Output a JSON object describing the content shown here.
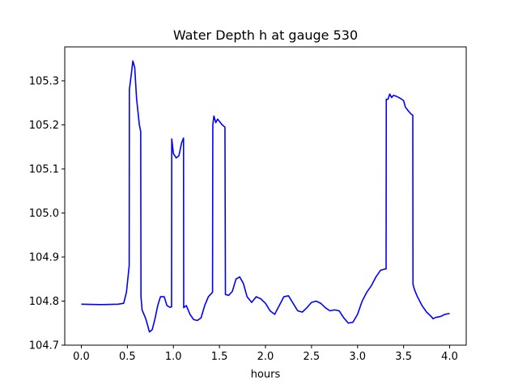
{
  "chart_data": {
    "type": "line",
    "title": "Water Depth h at gauge 530",
    "xlabel": "hours",
    "ylabel": "",
    "xlim": [
      -0.18,
      4.18
    ],
    "ylim": [
      104.7,
      105.377
    ],
    "xticks": [
      0.0,
      0.5,
      1.0,
      1.5,
      2.0,
      2.5,
      3.0,
      3.5,
      4.0
    ],
    "xtick_labels": [
      "0.0",
      "0.5",
      "1.0",
      "1.5",
      "2.0",
      "2.5",
      "3.0",
      "3.5",
      "4.0"
    ],
    "yticks": [
      104.7,
      104.8,
      104.9,
      105.0,
      105.1,
      105.2,
      105.3
    ],
    "ytick_labels": [
      "104.7",
      "104.8",
      "104.9",
      "105.0",
      "105.1",
      "105.2",
      "105.3"
    ],
    "grid": false,
    "legend": "none",
    "series": [
      {
        "color": "#0000ff",
        "x": [
          0.0,
          0.2,
          0.4,
          0.46,
          0.49,
          0.52,
          0.522,
          0.54,
          0.56,
          0.58,
          0.6,
          0.63,
          0.645,
          0.648,
          0.66,
          0.7,
          0.74,
          0.77,
          0.8,
          0.83,
          0.86,
          0.9,
          0.93,
          0.96,
          0.98,
          0.982,
          1.0,
          1.03,
          1.06,
          1.09,
          1.11,
          1.112,
          1.14,
          1.18,
          1.22,
          1.26,
          1.3,
          1.34,
          1.38,
          1.425,
          1.428,
          1.44,
          1.46,
          1.48,
          1.5,
          1.53,
          1.56,
          1.565,
          1.6,
          1.64,
          1.68,
          1.72,
          1.76,
          1.8,
          1.85,
          1.9,
          1.95,
          2.0,
          2.05,
          2.1,
          2.15,
          2.2,
          2.25,
          2.3,
          2.35,
          2.4,
          2.45,
          2.5,
          2.55,
          2.6,
          2.65,
          2.7,
          2.75,
          2.8,
          2.85,
          2.9,
          2.95,
          3.0,
          3.05,
          3.1,
          3.15,
          3.2,
          3.25,
          3.3,
          3.31,
          3.312,
          3.33,
          3.35,
          3.37,
          3.39,
          3.42,
          3.45,
          3.48,
          3.5,
          3.52,
          3.55,
          3.58,
          3.6,
          3.602,
          3.62,
          3.65,
          3.7,
          3.75,
          3.8,
          3.82,
          3.85,
          3.9,
          3.95,
          4.0
        ],
        "y": [
          104.793,
          104.792,
          104.793,
          104.795,
          104.82,
          104.88,
          105.28,
          105.31,
          105.345,
          105.33,
          105.26,
          105.2,
          105.185,
          104.81,
          104.78,
          104.76,
          104.73,
          104.735,
          104.76,
          104.79,
          104.81,
          104.81,
          104.79,
          104.786,
          104.787,
          105.168,
          105.135,
          105.125,
          105.13,
          105.16,
          105.17,
          104.785,
          104.79,
          104.77,
          104.758,
          104.756,
          104.762,
          104.79,
          104.81,
          104.82,
          105.2,
          105.22,
          105.205,
          105.213,
          105.208,
          105.2,
          105.195,
          104.815,
          104.813,
          104.822,
          104.85,
          104.855,
          104.84,
          104.81,
          104.797,
          104.81,
          104.805,
          104.795,
          104.778,
          104.77,
          104.79,
          104.81,
          104.812,
          104.795,
          104.778,
          104.775,
          104.785,
          104.797,
          104.8,
          104.795,
          104.785,
          104.778,
          104.78,
          104.778,
          104.762,
          104.75,
          104.752,
          104.77,
          104.8,
          104.82,
          104.835,
          104.855,
          104.87,
          104.873,
          104.873,
          105.258,
          105.258,
          105.27,
          105.262,
          105.267,
          105.265,
          105.262,
          105.258,
          105.255,
          105.24,
          105.232,
          105.225,
          105.222,
          104.838,
          104.825,
          104.81,
          104.79,
          104.775,
          104.765,
          104.76,
          104.763,
          104.765,
          104.77,
          104.772
        ]
      }
    ]
  }
}
